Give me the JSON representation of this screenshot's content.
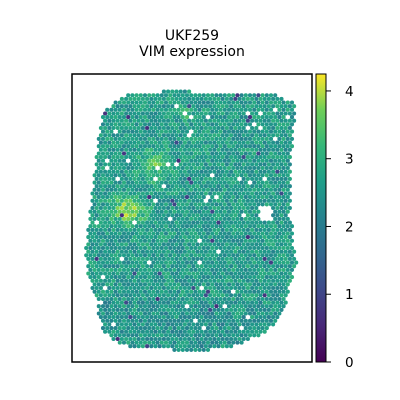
{
  "chart_data": {
    "type": "heatmap",
    "subtype": "spatial-spot-plot",
    "title_lines": [
      "UKF259",
      "VIM expression"
    ],
    "colormap": "viridis",
    "colorbar": {
      "range": [
        0,
        4.25
      ],
      "ticks": [
        0,
        1,
        2,
        3,
        4
      ],
      "tick_labels": [
        "0",
        "1",
        "2",
        "3",
        "4"
      ]
    },
    "expression_summary": {
      "typical_value": 2.6,
      "high_region_value": 3.9,
      "low_spot_value": 0.6
    },
    "grid": false,
    "legend": "colorbar-right",
    "xlabel": "",
    "ylabel": ""
  }
}
